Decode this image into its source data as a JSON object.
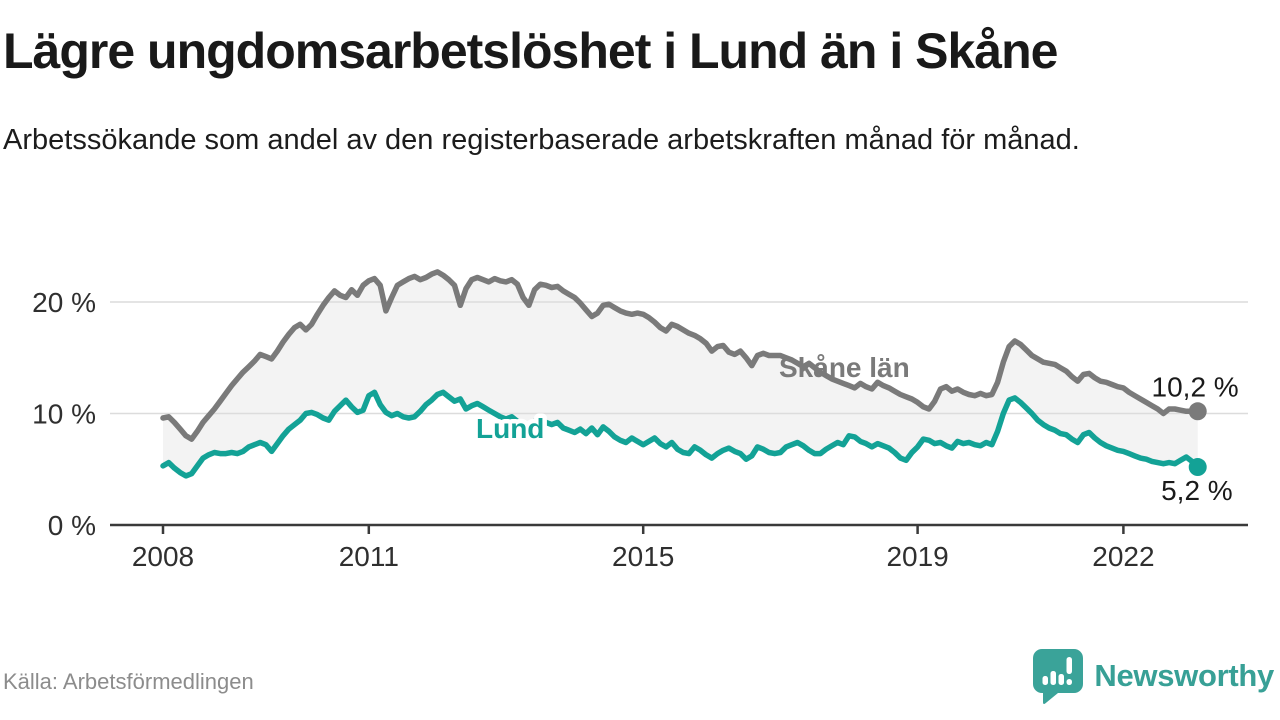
{
  "header": {
    "title": "Lägre ungdomsarbetslöshet i Lund än i Skåne",
    "subtitle": "Arbetssökande som andel av den registerbaserade arbetskraften månad för månad."
  },
  "footer": {
    "source": "Källa: Arbetsförmedlingen",
    "brand": "Newsworthy"
  },
  "colors": {
    "skane_line": "#7a7a7a",
    "lund_line": "#13a296",
    "band_fill": "#f3f3f3",
    "gridline": "#dcdcdc",
    "axis": "#3a3a3a",
    "axis_text": "#2f2f2f",
    "end_label_text": "#1a1a1a",
    "brand_teal": "#3aa399"
  },
  "chart_data": {
    "type": "line",
    "title": "Lägre ungdomsarbetslöshet i Lund än i Skåne",
    "subtitle": "Arbetssökande som andel av den registerbaserade arbetskraften månad för månad.",
    "unit": "%",
    "x_start_year": 2008,
    "x_step_months": 1,
    "x_ticks": [
      2008,
      2011,
      2015,
      2019,
      2022
    ],
    "y_ticks": [
      {
        "value": 0,
        "label": "0 %"
      },
      {
        "value": 10,
        "label": "10 %"
      },
      {
        "value": 20,
        "label": "20 %"
      }
    ],
    "ylim": [
      0,
      23.5
    ],
    "grid": "horizontal-only",
    "legend_position": "inline-labels",
    "band_fill_between_series": true,
    "series": [
      {
        "id": "skane",
        "name": "Skåne län",
        "color": "#7a7a7a",
        "end_value": 10.2,
        "end_label": "10,2 %",
        "values": [
          9.6,
          9.7,
          9.2,
          8.6,
          8.0,
          7.7,
          8.4,
          9.2,
          9.8,
          10.4,
          11.1,
          11.8,
          12.5,
          13.1,
          13.7,
          14.2,
          14.7,
          15.3,
          15.1,
          14.9,
          15.6,
          16.4,
          17.1,
          17.7,
          18.0,
          17.5,
          18.0,
          18.9,
          19.7,
          20.4,
          21.0,
          20.6,
          20.4,
          21.1,
          20.6,
          21.5,
          21.9,
          22.1,
          21.5,
          19.2,
          20.4,
          21.5,
          21.8,
          22.1,
          22.3,
          22.0,
          22.2,
          22.5,
          22.7,
          22.4,
          22.0,
          21.5,
          19.7,
          21.2,
          22.0,
          22.2,
          22.0,
          21.8,
          22.1,
          21.9,
          21.8,
          22.0,
          21.6,
          20.4,
          19.7,
          21.1,
          21.6,
          21.5,
          21.3,
          21.4,
          21.0,
          20.7,
          20.4,
          19.9,
          19.3,
          18.7,
          19.0,
          19.7,
          19.8,
          19.5,
          19.2,
          19.0,
          18.9,
          19.0,
          18.9,
          18.6,
          18.2,
          17.7,
          17.4,
          18.0,
          17.8,
          17.5,
          17.2,
          17.0,
          16.7,
          16.3,
          15.6,
          16.0,
          16.1,
          15.5,
          15.3,
          15.6,
          15.0,
          14.3,
          15.2,
          15.4,
          15.2,
          15.2,
          15.2,
          15.0,
          14.8,
          14.5,
          14.2,
          14.5,
          14.1,
          13.7,
          13.4,
          13.1,
          12.9,
          12.7,
          12.5,
          12.3,
          12.7,
          12.4,
          12.2,
          12.8,
          12.5,
          12.3,
          12.0,
          11.7,
          11.5,
          11.3,
          11.0,
          10.6,
          10.4,
          11.1,
          12.2,
          12.4,
          12.0,
          12.2,
          11.9,
          11.7,
          11.6,
          11.8,
          11.6,
          11.7,
          12.8,
          14.6,
          16.0,
          16.5,
          16.2,
          15.7,
          15.2,
          14.9,
          14.6,
          14.5,
          14.4,
          14.1,
          13.8,
          13.3,
          12.9,
          13.5,
          13.6,
          13.2,
          12.9,
          12.8,
          12.6,
          12.4,
          12.3,
          11.9,
          11.6,
          11.3,
          11.0,
          10.7,
          10.4,
          10.0,
          10.4,
          10.4,
          10.3,
          10.2,
          10.2,
          10.2
        ]
      },
      {
        "id": "lund",
        "name": "Lund",
        "color": "#13a296",
        "end_value": 5.2,
        "end_label": "5,2 %",
        "values": [
          5.3,
          5.6,
          5.1,
          4.7,
          4.4,
          4.6,
          5.3,
          6.0,
          6.3,
          6.5,
          6.4,
          6.4,
          6.5,
          6.4,
          6.6,
          7.0,
          7.2,
          7.4,
          7.2,
          6.6,
          7.3,
          8.0,
          8.6,
          9.0,
          9.4,
          10.0,
          10.1,
          9.9,
          9.6,
          9.4,
          10.2,
          10.7,
          11.2,
          10.6,
          10.1,
          10.3,
          11.6,
          11.9,
          10.8,
          10.1,
          9.8,
          10.0,
          9.7,
          9.6,
          9.7,
          10.2,
          10.8,
          11.2,
          11.7,
          11.9,
          11.5,
          11.1,
          11.3,
          10.4,
          10.7,
          10.9,
          10.6,
          10.3,
          10.0,
          9.7,
          9.5,
          9.7,
          9.3,
          9.0,
          8.8,
          9.3,
          9.5,
          9.2,
          9.0,
          9.2,
          8.7,
          8.5,
          8.3,
          8.6,
          8.2,
          8.7,
          8.1,
          8.8,
          8.4,
          7.9,
          7.6,
          7.4,
          7.8,
          7.5,
          7.2,
          7.5,
          7.8,
          7.3,
          7.0,
          7.4,
          6.8,
          6.5,
          6.4,
          7.0,
          6.7,
          6.3,
          6.0,
          6.4,
          6.7,
          6.9,
          6.6,
          6.4,
          5.9,
          6.2,
          7.0,
          6.8,
          6.5,
          6.4,
          6.5,
          7.0,
          7.2,
          7.4,
          7.1,
          6.7,
          6.4,
          6.4,
          6.8,
          7.1,
          7.4,
          7.2,
          8.0,
          7.9,
          7.5,
          7.3,
          7.0,
          7.3,
          7.1,
          6.9,
          6.5,
          6.0,
          5.8,
          6.5,
          7.0,
          7.7,
          7.6,
          7.3,
          7.4,
          7.1,
          6.9,
          7.5,
          7.3,
          7.4,
          7.2,
          7.1,
          7.4,
          7.2,
          8.4,
          10.0,
          11.2,
          11.4,
          11.0,
          10.5,
          10.0,
          9.4,
          9.0,
          8.7,
          8.5,
          8.2,
          8.1,
          7.7,
          7.4,
          8.1,
          8.3,
          7.8,
          7.4,
          7.1,
          6.9,
          6.7,
          6.6,
          6.4,
          6.2,
          6.0,
          5.9,
          5.7,
          5.6,
          5.5,
          5.6,
          5.5,
          5.8,
          6.1,
          5.7,
          5.2
        ]
      }
    ]
  }
}
